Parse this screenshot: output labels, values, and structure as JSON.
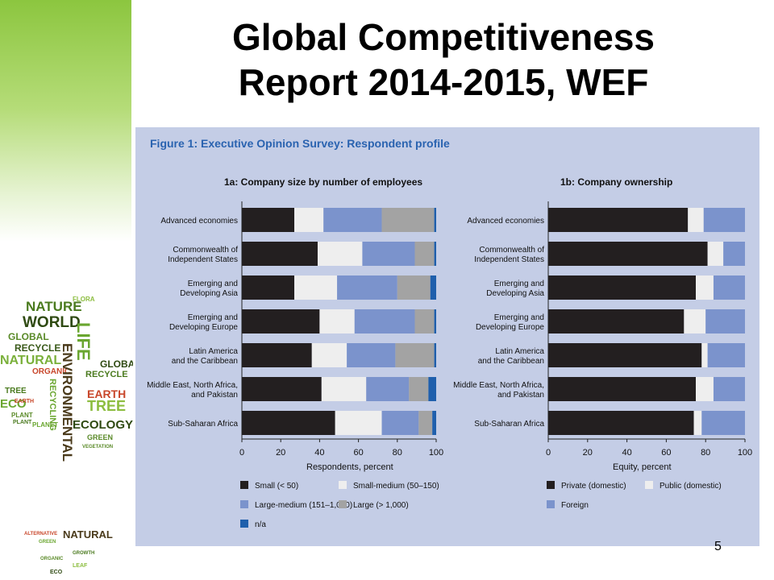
{
  "slide": {
    "title_lines": [
      "Global Competitiveness",
      "Report 2014-2015, WEF"
    ],
    "page_number": "5"
  },
  "figure": {
    "title": "Figure 1: Executive Opinion Survey:  Respondent profile"
  },
  "chart_data": [
    {
      "type": "bar",
      "orientation": "horizontal",
      "stacked": true,
      "title": "1a: Company size by number of employees",
      "xlabel": "Respondents, percent",
      "xlim": [
        0,
        100
      ],
      "xticks": [
        "0",
        "20",
        "40",
        "60",
        "80",
        "100"
      ],
      "categories": [
        [
          "Advanced economies"
        ],
        [
          "Commonwealth of",
          "Independent States"
        ],
        [
          "Emerging and",
          "Developing Asia"
        ],
        [
          "Emerging and",
          "Developing Europe"
        ],
        [
          "Latin America",
          "and the Caribbean"
        ],
        [
          "Middle East, North Africa,",
          "and Pakistan"
        ],
        [
          "Sub-Saharan Africa"
        ]
      ],
      "series": [
        {
          "name": "Small (< 50)",
          "color": "#231f20",
          "values": [
            27,
            39,
            27,
            40,
            36,
            41,
            48
          ]
        },
        {
          "name": "Small-medium (50–150)",
          "color": "#eeeeee",
          "values": [
            15,
            23,
            22,
            18,
            18,
            23,
            24
          ]
        },
        {
          "name": "Large-medium (151–1,000)",
          "color": "#7b93cc",
          "values": [
            30,
            27,
            31,
            31,
            25,
            22,
            19
          ]
        },
        {
          "name": "Large (> 1,000)",
          "color": "#a3a3a3",
          "values": [
            27,
            10,
            17,
            10,
            20,
            10,
            7
          ]
        },
        {
          "name": "n/a",
          "color": "#1f5fac",
          "values": [
            1,
            1,
            3,
            1,
            1,
            4,
            2
          ]
        }
      ],
      "legend_placement": "bottom"
    },
    {
      "type": "bar",
      "orientation": "horizontal",
      "stacked": true,
      "title": "1b: Company  ownership",
      "xlabel": "Equity, percent",
      "xlim": [
        0,
        100
      ],
      "xticks": [
        "0",
        "20",
        "40",
        "60",
        "80",
        "100"
      ],
      "categories": [
        [
          "Advanced economies"
        ],
        [
          "Commonwealth of",
          "Independent States"
        ],
        [
          "Emerging and",
          "Developing Asia"
        ],
        [
          "Emerging and",
          "Developing Europe"
        ],
        [
          "Latin America",
          "and the Caribbean"
        ],
        [
          "Middle East, North Africa,",
          "and Pakistan"
        ],
        [
          "Sub-Saharan Africa"
        ]
      ],
      "series": [
        {
          "name": "Private (domestic)",
          "color": "#231f20",
          "values": [
            71,
            81,
            75,
            69,
            78,
            75,
            74
          ]
        },
        {
          "name": "Public (domestic)",
          "color": "#eeeeee",
          "values": [
            8,
            8,
            9,
            11,
            3,
            9,
            4
          ]
        },
        {
          "name": "Foreign",
          "color": "#7b93cc",
          "values": [
            21,
            11,
            16,
            20,
            19,
            16,
            22
          ]
        }
      ],
      "legend_placement": "bottom"
    }
  ],
  "wordcloud": {
    "words": [
      {
        "text": "NATURE",
        "color": "#4a7a1e"
      },
      {
        "text": "FLORA",
        "color": "#8cbd3f"
      },
      {
        "text": "WORLD",
        "color": "#2f4a12"
      },
      {
        "text": "LIFE",
        "color": "#6aa630"
      },
      {
        "text": "GLOBAL",
        "color": "#5a8a28"
      },
      {
        "text": "RECYCLE",
        "color": "#3a5a1a"
      },
      {
        "text": "NATURAL",
        "color": "#7ab03a"
      },
      {
        "text": "ORGANIC",
        "color": "#c8462a"
      },
      {
        "text": "RECYCLE",
        "color": "#4a7a1e"
      },
      {
        "text": "GLOBA",
        "color": "#2f4a12"
      },
      {
        "text": "EARTH",
        "color": "#c8462a"
      },
      {
        "text": "TREE",
        "color": "#4a7a1e"
      },
      {
        "text": "ECO",
        "color": "#6aa630"
      },
      {
        "text": "PLANT",
        "color": "#5a8a28"
      },
      {
        "text": "TREE",
        "color": "#8cbd3f"
      },
      {
        "text": "ECOLOGY",
        "color": "#2f4a12"
      },
      {
        "text": "ENVIRONMENTAL",
        "color": "#4a3a1a"
      },
      {
        "text": "RECYCLING",
        "color": "#6aa630"
      },
      {
        "text": "GREEN",
        "color": "#5a8a28"
      },
      {
        "text": "NATURAL",
        "color": "#4a3a1a"
      },
      {
        "text": "ALTERNATIVE",
        "color": "#c8462a"
      },
      {
        "text": "GREEN",
        "color": "#6aa630"
      },
      {
        "text": "ORGANIC",
        "color": "#5a8a28"
      },
      {
        "text": "GROWTH",
        "color": "#4a7a1e"
      },
      {
        "text": "ECO",
        "color": "#2f4a12"
      },
      {
        "text": "LEAF",
        "color": "#8cbd3f"
      },
      {
        "text": "EARTH",
        "color": "#c8462a"
      },
      {
        "text": "PLANT",
        "color": "#4a7a1e"
      },
      {
        "text": "PLANET",
        "color": "#6aa630"
      },
      {
        "text": "VEGETATION",
        "color": "#5a8a28"
      }
    ]
  }
}
